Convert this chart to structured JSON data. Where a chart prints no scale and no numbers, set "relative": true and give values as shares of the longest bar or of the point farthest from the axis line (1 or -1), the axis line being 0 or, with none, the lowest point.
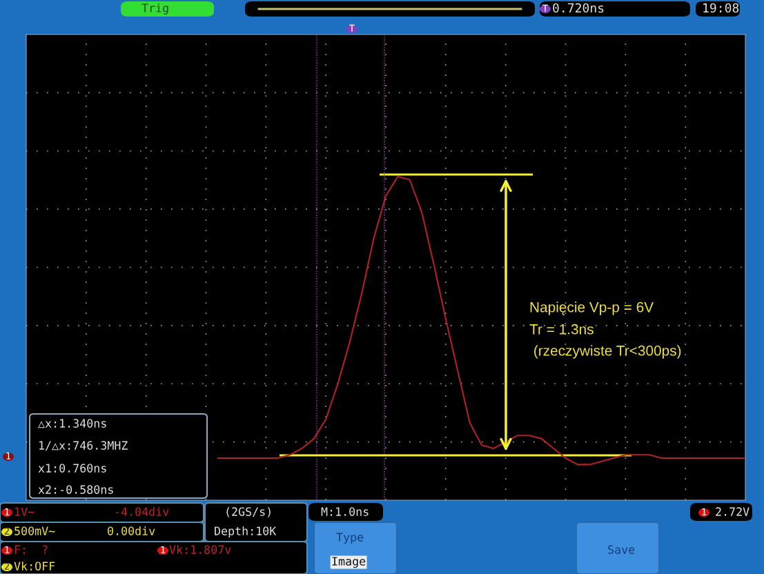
{
  "chart_data": {
    "type": "line",
    "relative": true,
    "grid": true,
    "marker": "none",
    "line_style": "solid",
    "categories": [
      null,
      null,
      null,
      null,
      null,
      null,
      null,
      null,
      null,
      null,
      null,
      null,
      null,
      null,
      null,
      null,
      null,
      null,
      null,
      null,
      null,
      null,
      null,
      null,
      null,
      null,
      null,
      null,
      null,
      null,
      null,
      null,
      null,
      null,
      null,
      null,
      null,
      null,
      null,
      null,
      null,
      null,
      null,
      null,
      null,
      null,
      null,
      null,
      null,
      null,
      null,
      null,
      null,
      null,
      null,
      null,
      null,
      null,
      null,
      null,
      null
    ],
    "series": [
      {
        "color": "#b22222",
        "values": [
          null,
          null,
          null,
          null,
          null,
          null,
          null,
          null,
          null,
          null,
          null,
          null,
          null,
          null,
          null,
          null,
          0.13,
          0.13,
          0.13,
          0.13,
          0.13,
          0.13,
          0.14,
          0.16,
          0.19,
          0.25,
          0.36,
          0.49,
          0.64,
          0.81,
          0.94,
          1.0,
          0.99,
          0.89,
          0.73,
          0.56,
          0.4,
          0.24,
          0.17,
          0.16,
          0.18,
          0.2,
          0.2,
          0.19,
          0.16,
          0.13,
          0.11,
          0.11,
          0.12,
          0.13,
          0.14,
          0.14,
          0.14,
          0.13,
          0.13,
          0.13,
          0.13,
          0.13,
          0.13,
          0.13,
          0.13
        ]
      }
    ],
    "annotations": [
      "Napięcie Vp-p = 6V",
      "Tr = 1.3ns",
      " (rzeczywiste Tr<300ps)",
      "Trig",
      "0.720ns",
      "19:08",
      "△x:1.340ns",
      "1/△x:746.3MHZ",
      "x1:0.760ns",
      "x2:-0.580ns",
      "1V~",
      "-4.04div",
      "(2GS/s)",
      "M:1.0ns",
      "2.72V",
      "500mV~",
      "0.00div",
      "Depth:10K",
      "Type",
      "Image",
      "Save",
      "F:  ?",
      "Vk:1.807v",
      "Vk:OFF",
      "1",
      "2",
      "1",
      "1",
      "2",
      "1",
      "1",
      "T",
      "T"
    ]
  }
}
